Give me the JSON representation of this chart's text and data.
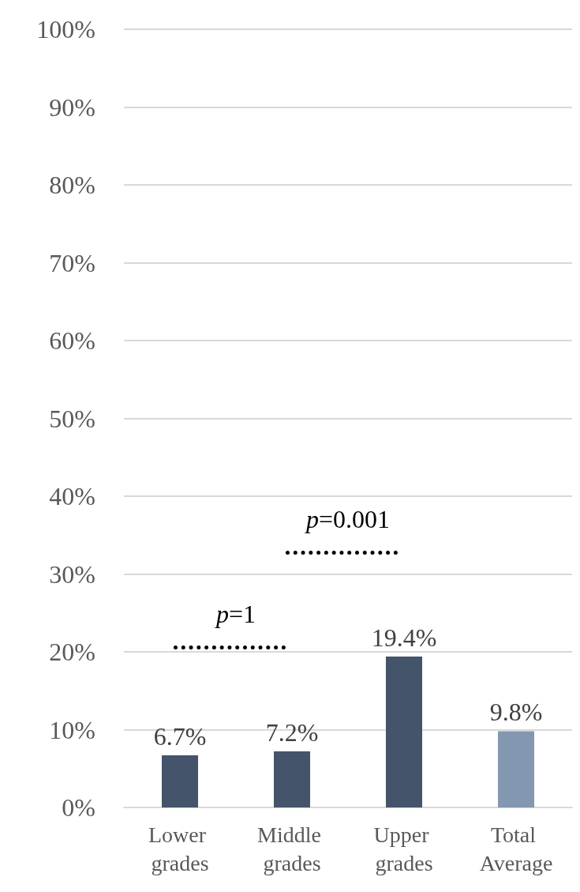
{
  "chart_data": {
    "type": "bar",
    "categories": [
      "Lower grades",
      "Middle grades",
      "Upper grades",
      "Total Average"
    ],
    "values": [
      6.7,
      7.2,
      19.4,
      9.8
    ],
    "colors": [
      "#44546a",
      "#44546a",
      "#44546a",
      "#8497b0"
    ],
    "value_labels": [
      "6.7%",
      "7.2%",
      "19.4%",
      "9.8%"
    ],
    "ylim": [
      0,
      100
    ],
    "yticks": [
      {
        "value": 0,
        "label": "0%"
      },
      {
        "value": 10,
        "label": "10%"
      },
      {
        "value": 20,
        "label": "20%"
      },
      {
        "value": 30,
        "label": "30%"
      },
      {
        "value": 40,
        "label": "40%"
      },
      {
        "value": 50,
        "label": "50%"
      },
      {
        "value": 60,
        "label": "60%"
      },
      {
        "value": 70,
        "label": "70%"
      },
      {
        "value": 80,
        "label": "80%"
      },
      {
        "value": 90,
        "label": "90%"
      },
      {
        "value": 100,
        "label": "100%"
      }
    ],
    "grid": "y",
    "annotations": [
      "p=1",
      "p=0.001"
    ]
  }
}
